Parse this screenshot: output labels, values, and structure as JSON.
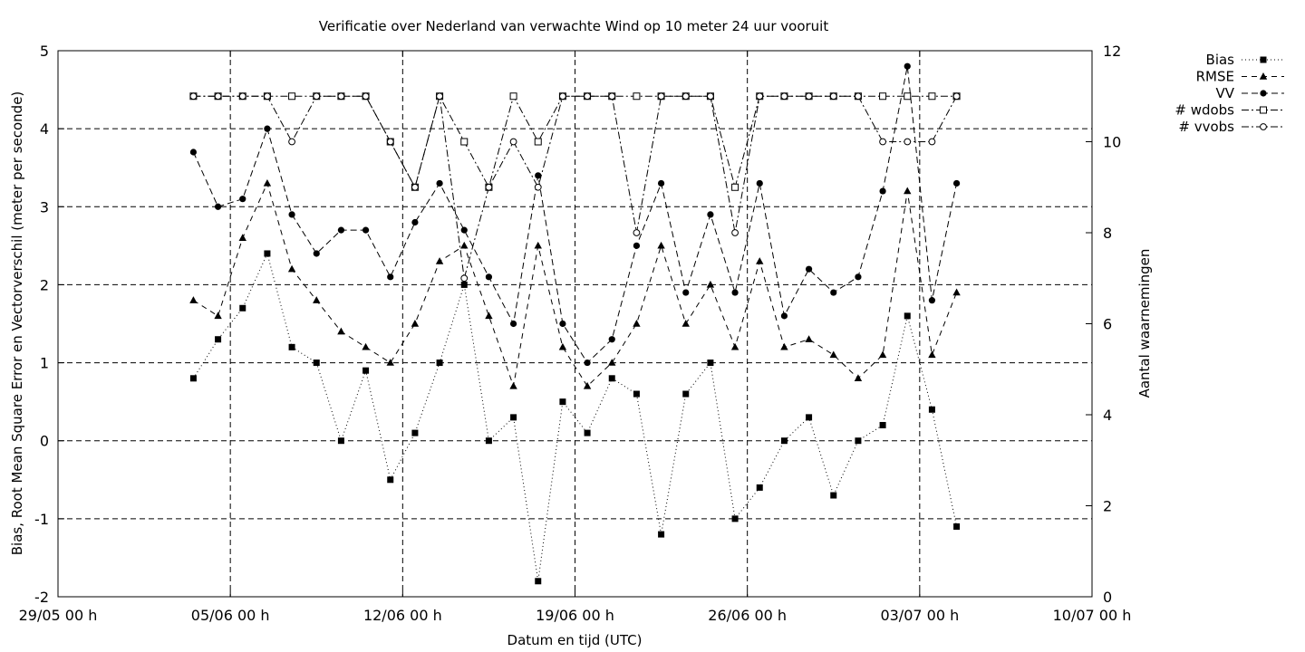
{
  "chart_data": {
    "type": "line",
    "title": "Verificatie over Nederland van verwachte Wind op 10 meter 24 uur vooruit",
    "xlabel": "Datum en tijd (UTC)",
    "ylabel": "Bias, Root Mean Square Error en Vectorverschil (meter per seconde)",
    "y2label": "Aantal waarnemingen",
    "xlim": [
      "2007-05-29",
      "2007-07-10"
    ],
    "ylim": [
      -2,
      5
    ],
    "y2lim": [
      0,
      12
    ],
    "x_ticks": [
      "29/05 00 h",
      "05/06 00 h",
      "12/06 00 h",
      "19/06 00 h",
      "26/06 00 h",
      "03/07 00 h",
      "10/07 00 h"
    ],
    "y_ticks": [
      "-2",
      "-1",
      "0",
      "1",
      "2",
      "3",
      "4",
      "5"
    ],
    "y2_ticks": [
      "0",
      "2",
      "4",
      "6",
      "8",
      "10",
      "12"
    ],
    "grid": true,
    "legend_position": "outside-top-right",
    "x": [
      "2007-06-03 12:00",
      "2007-06-04 12:00",
      "2007-06-05 12:00",
      "2007-06-06 12:00",
      "2007-06-07 12:00",
      "2007-06-08 12:00",
      "2007-06-09 12:00",
      "2007-06-10 12:00",
      "2007-06-11 12:00",
      "2007-06-12 12:00",
      "2007-06-13 12:00",
      "2007-06-14 12:00",
      "2007-06-15 12:00",
      "2007-06-16 12:00",
      "2007-06-17 12:00",
      "2007-06-18 12:00",
      "2007-06-19 12:00",
      "2007-06-20 12:00",
      "2007-06-21 12:00",
      "2007-06-22 12:00",
      "2007-06-23 12:00",
      "2007-06-24 12:00",
      "2007-06-25 12:00",
      "2007-06-26 12:00",
      "2007-06-27 12:00",
      "2007-06-28 12:00",
      "2007-06-29 12:00",
      "2007-06-30 12:00",
      "2007-07-01 12:00",
      "2007-07-02 12:00",
      "2007-07-03 12:00",
      "2007-07-04 12:00"
    ],
    "series": [
      {
        "name": "Bias",
        "axis": "left",
        "marker": "square-filled",
        "dash": "1,3",
        "values": [
          0.8,
          1.3,
          1.7,
          2.4,
          1.2,
          1.0,
          0.0,
          0.9,
          -0.5,
          0.1,
          1.0,
          2.0,
          0.0,
          0.3,
          -1.8,
          0.5,
          0.1,
          0.8,
          0.6,
          -1.2,
          0.6,
          1.0,
          -1.0,
          -0.6,
          0.0,
          0.3,
          -0.7,
          0.0,
          0.2,
          1.6,
          0.4,
          -1.1
        ]
      },
      {
        "name": "RMSE",
        "axis": "left",
        "marker": "triangle-filled",
        "dash": "6,5",
        "values": [
          1.8,
          1.6,
          2.6,
          3.3,
          2.2,
          1.8,
          1.4,
          1.2,
          1.0,
          1.5,
          2.3,
          2.5,
          1.6,
          0.7,
          2.5,
          1.2,
          0.7,
          1.0,
          1.5,
          2.5,
          1.5,
          2.0,
          1.2,
          2.3,
          1.2,
          1.3,
          1.1,
          0.8,
          1.1,
          3.2,
          1.1,
          1.9
        ]
      },
      {
        "name": "VV",
        "axis": "left",
        "marker": "circle-filled",
        "dash": "7,4",
        "values": [
          3.7,
          3.0,
          3.1,
          4.0,
          2.9,
          2.4,
          2.7,
          2.7,
          2.1,
          2.8,
          3.3,
          2.7,
          2.1,
          1.5,
          3.4,
          1.5,
          1.0,
          1.3,
          2.5,
          3.3,
          1.9,
          2.9,
          1.9,
          3.3,
          1.6,
          2.2,
          1.9,
          2.1,
          3.2,
          4.8,
          1.8,
          3.3
        ]
      },
      {
        "name": "# wdobs",
        "axis": "right",
        "marker": "square-open",
        "dash": "8,3,2,3",
        "values": [
          11,
          11,
          11,
          11,
          11,
          11,
          11,
          11,
          10,
          9,
          11,
          10,
          9,
          11,
          10,
          11,
          11,
          11,
          11,
          11,
          11,
          11,
          9,
          11,
          11,
          11,
          11,
          11,
          11,
          11,
          11,
          11
        ]
      },
      {
        "name": "# vvobs",
        "axis": "right",
        "marker": "circle-open",
        "dash": "8,3,2,3",
        "values": [
          11,
          11,
          11,
          11,
          10,
          11,
          11,
          11,
          10,
          9,
          11,
          7,
          9,
          10,
          9,
          11,
          11,
          11,
          8,
          11,
          11,
          11,
          8,
          11,
          11,
          11,
          11,
          11,
          10,
          10,
          10,
          11
        ]
      }
    ]
  }
}
